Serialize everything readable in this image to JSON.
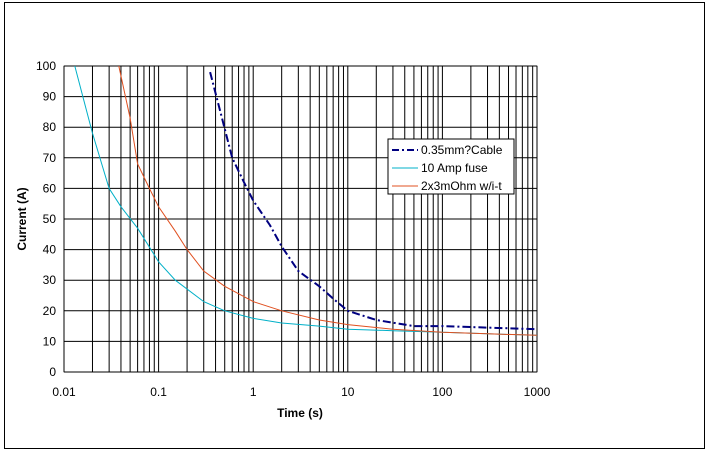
{
  "chart_data": {
    "type": "line",
    "xlabel": "Time (s)",
    "ylabel": "Current (A)",
    "x_scale": "log",
    "xlim": [
      0.01,
      1000
    ],
    "ylim": [
      0,
      100
    ],
    "x_tick_labels": [
      "0.01",
      "0.1",
      "1",
      "10",
      "100",
      "1000"
    ],
    "y_tick_labels": [
      "0",
      "10",
      "20",
      "30",
      "40",
      "50",
      "60",
      "70",
      "80",
      "90",
      "100"
    ],
    "grid": true,
    "legend_position": "right",
    "series": [
      {
        "name": "0.35mm?Cable",
        "color": "#000080",
        "style": "dash-dot",
        "points": [
          [
            0.35,
            98
          ],
          [
            0.45,
            85
          ],
          [
            0.6,
            70
          ],
          [
            0.8,
            62
          ],
          [
            1,
            56
          ],
          [
            1.5,
            48
          ],
          [
            2,
            41
          ],
          [
            3,
            33
          ],
          [
            5,
            28
          ],
          [
            7,
            24
          ],
          [
            10,
            20
          ],
          [
            20,
            17
          ],
          [
            50,
            15
          ],
          [
            100,
            15
          ],
          [
            300,
            14.5
          ],
          [
            1000,
            14
          ]
        ]
      },
      {
        "name": "10 Amp fuse",
        "color": "#00b0c8",
        "style": "solid",
        "points": [
          [
            0.013,
            100
          ],
          [
            0.02,
            78
          ],
          [
            0.03,
            60
          ],
          [
            0.04,
            54
          ],
          [
            0.06,
            47
          ],
          [
            0.1,
            36
          ],
          [
            0.15,
            30
          ],
          [
            0.3,
            23
          ],
          [
            0.5,
            20
          ],
          [
            1,
            17.5
          ],
          [
            2,
            16
          ],
          [
            5,
            15
          ],
          [
            10,
            14
          ],
          [
            30,
            13.5
          ],
          [
            100,
            13
          ],
          [
            300,
            12.5
          ],
          [
            1000,
            12
          ]
        ]
      },
      {
        "name": "2x3mOhm w/i-t",
        "color": "#e05020",
        "style": "solid",
        "points": [
          [
            0.038,
            100
          ],
          [
            0.05,
            83
          ],
          [
            0.06,
            68
          ],
          [
            0.08,
            60
          ],
          [
            0.1,
            54
          ],
          [
            0.15,
            46
          ],
          [
            0.2,
            40
          ],
          [
            0.3,
            33
          ],
          [
            0.5,
            28
          ],
          [
            1,
            23
          ],
          [
            2,
            20
          ],
          [
            5,
            17
          ],
          [
            10,
            15.5
          ],
          [
            30,
            14
          ],
          [
            100,
            13
          ],
          [
            300,
            12.5
          ],
          [
            1000,
            12
          ]
        ]
      }
    ]
  }
}
